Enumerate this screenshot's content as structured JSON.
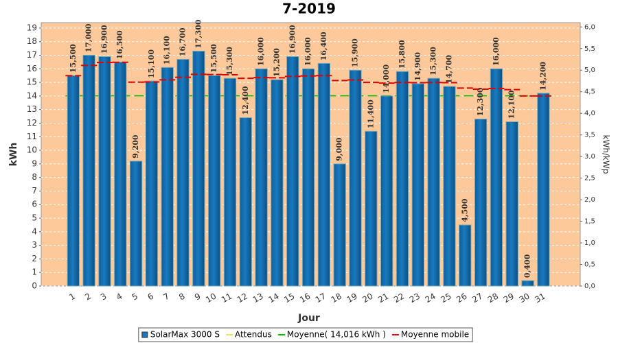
{
  "chart_data": {
    "type": "bar",
    "title": "7-2019",
    "xlabel": "Jour",
    "ylabel": "kWh",
    "y2label": "kWh/kWp",
    "categories": [
      "1",
      "2",
      "3",
      "4",
      "5",
      "6",
      "7",
      "8",
      "9",
      "10",
      "11",
      "12",
      "13",
      "14",
      "15",
      "16",
      "17",
      "18",
      "19",
      "20",
      "21",
      "22",
      "23",
      "24",
      "25",
      "26",
      "27",
      "28",
      "29",
      "30",
      "31"
    ],
    "series": [
      {
        "name": "SolarMax 3000 S",
        "color": "#1a7abf",
        "values": [
          15.5,
          17,
          16.9,
          16.5,
          9.2,
          15.1,
          16.1,
          16.7,
          17.3,
          15.5,
          15.3,
          12.4,
          16,
          15.2,
          16.9,
          16,
          16.4,
          9,
          15.9,
          11.4,
          14,
          15.8,
          14.9,
          15.3,
          14.7,
          4.5,
          12.3,
          16,
          12.1,
          0.4,
          14.2
        ],
        "value_labels": [
          "15,500",
          "17,000",
          "16,900",
          "16,500",
          "9,200",
          "15,100",
          "16,100",
          "16,700",
          "17,300",
          "15,500",
          "15,300",
          "12,400",
          "16,000",
          "15,200",
          "16,900",
          "16,000",
          "16,400",
          "9,000",
          "15,900",
          "11,400",
          "14,000",
          "15,800",
          "14,900",
          "15,300",
          "14,700",
          "4,500",
          "12,300",
          "16,000",
          "12,100",
          "0,400",
          "14,200"
        ]
      },
      {
        "name": "Moyenne mobile",
        "color": "#e00000",
        "values": [
          15.5,
          16.25,
          16.47,
          16.48,
          15.02,
          15.03,
          15.19,
          15.38,
          15.59,
          15.58,
          15.56,
          15.3,
          15.35,
          15.34,
          15.44,
          15.48,
          15.5,
          15.14,
          15.18,
          15.0,
          14.95,
          14.99,
          14.98,
          14.99,
          14.98,
          14.58,
          14.5,
          14.55,
          14.47,
          14.0,
          14.0
        ]
      }
    ],
    "reference_lines": [
      {
        "name": "Attendus",
        "color": "#e6e65a",
        "value": 14
      },
      {
        "name": "Moyenne( 14,016 kWh )",
        "color": "#00c000",
        "value": 14.016
      }
    ],
    "ylim": [
      0,
      19.4
    ],
    "yticks": [
      0,
      1,
      2,
      3,
      4,
      5,
      6,
      7,
      8,
      9,
      10,
      11,
      12,
      13,
      14,
      15,
      16,
      17,
      18,
      19
    ],
    "y2lim": [
      0,
      6.1
    ],
    "y2ticks": [
      {
        "value": 0,
        "label": "0,0"
      },
      {
        "value": 0.5,
        "label": "0,5"
      },
      {
        "value": 1,
        "label": "1,0"
      },
      {
        "value": 1.5,
        "label": "1,5"
      },
      {
        "value": 2,
        "label": "2,0"
      },
      {
        "value": 2.5,
        "label": "2,5"
      },
      {
        "value": 3,
        "label": "3,0"
      },
      {
        "value": 3.5,
        "label": "3,5"
      },
      {
        "value": 4,
        "label": "4,0"
      },
      {
        "value": 4.5,
        "label": "4,5"
      },
      {
        "value": 5,
        "label": "5,0"
      },
      {
        "value": 5.5,
        "label": "5,5"
      },
      {
        "value": 6,
        "label": "6,0"
      }
    ],
    "grid": true,
    "background": "#fdc99a"
  }
}
